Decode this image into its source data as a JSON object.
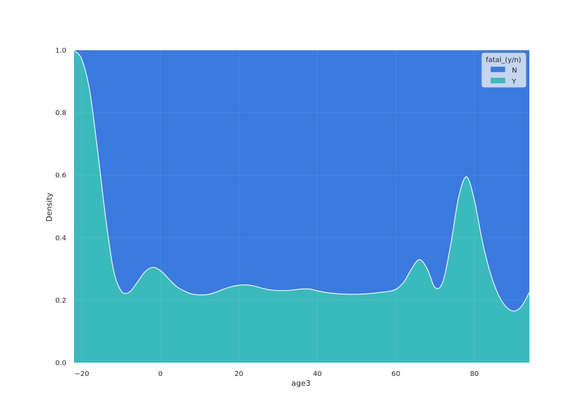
{
  "chart_data": {
    "type": "area",
    "stacked": "fill",
    "xlabel": "age3",
    "ylabel": "Density",
    "xlim": [
      -22,
      94
    ],
    "ylim": [
      0,
      1.0
    ],
    "xticks": [
      -20,
      0,
      20,
      40,
      60,
      80
    ],
    "xtick_labels": [
      "−20",
      "0",
      "20",
      "40",
      "60",
      "80"
    ],
    "yticks": [
      0.0,
      0.2,
      0.4,
      0.6,
      0.8,
      1.0
    ],
    "ytick_labels": [
      "0.0",
      "0.2",
      "0.4",
      "0.6",
      "0.8",
      "1.0"
    ],
    "grid": true,
    "legend": {
      "title": "fatal_(y/n)",
      "placement": "top-right",
      "entries": [
        "N",
        "Y"
      ]
    },
    "colors": {
      "N": "#3b7ade",
      "Y": "#3bbabc"
    },
    "series": [
      {
        "name": "Y",
        "x": [
          -22,
          -20,
          -18,
          -16,
          -14,
          -12,
          -10,
          -8,
          -6,
          -4,
          -2,
          0,
          2,
          4,
          6,
          8,
          10,
          12,
          14,
          16,
          18,
          20,
          22,
          24,
          26,
          28,
          30,
          32,
          34,
          36,
          38,
          40,
          42,
          44,
          46,
          48,
          50,
          52,
          54,
          56,
          58,
          60,
          62,
          64,
          66,
          68,
          70,
          72,
          74,
          76,
          78,
          80,
          82,
          84,
          86,
          88,
          90,
          92,
          94
        ],
        "values": [
          1.0,
          0.97,
          0.87,
          0.68,
          0.47,
          0.3,
          0.23,
          0.225,
          0.255,
          0.29,
          0.305,
          0.295,
          0.27,
          0.245,
          0.23,
          0.22,
          0.217,
          0.218,
          0.225,
          0.235,
          0.243,
          0.248,
          0.249,
          0.245,
          0.238,
          0.233,
          0.231,
          0.231,
          0.233,
          0.236,
          0.236,
          0.23,
          0.225,
          0.222,
          0.22,
          0.219,
          0.219,
          0.22,
          0.222,
          0.225,
          0.228,
          0.235,
          0.258,
          0.3,
          0.33,
          0.3,
          0.24,
          0.26,
          0.38,
          0.53,
          0.595,
          0.52,
          0.39,
          0.29,
          0.22,
          0.18,
          0.165,
          0.18,
          0.225
        ]
      },
      {
        "name": "N",
        "note": "fills the remainder up to 1.0"
      }
    ]
  }
}
